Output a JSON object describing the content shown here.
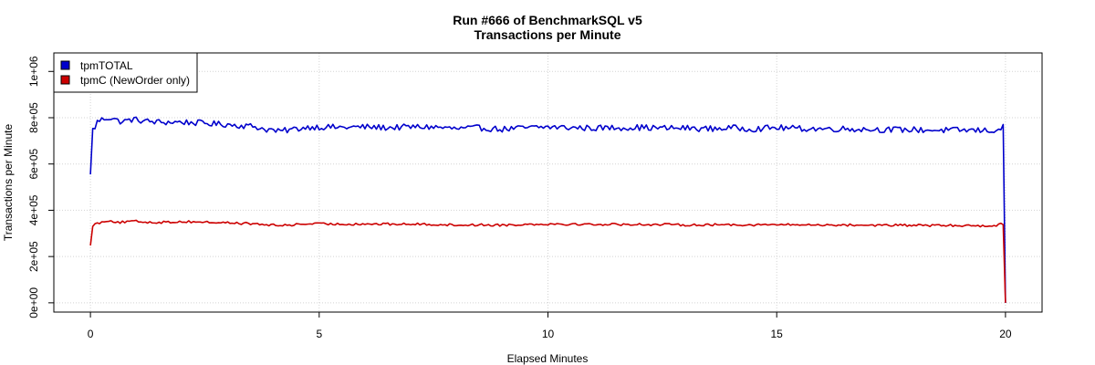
{
  "chart_data": {
    "type": "line",
    "title": "Run #666 of BenchmarkSQL v5",
    "subtitle": "Transactions per Minute",
    "xlabel": "Elapsed Minutes",
    "ylabel": "Transactions per Minute",
    "xlim": [
      -0.8,
      20.8
    ],
    "ylim": [
      -40000,
      1080000
    ],
    "x_ticks": [
      0,
      5,
      10,
      15,
      20
    ],
    "x_tick_labels": [
      "0",
      "5",
      "10",
      "15",
      "20"
    ],
    "y_ticks": [
      0,
      200000,
      400000,
      600000,
      800000,
      1000000
    ],
    "y_tick_labels": [
      "0e+00",
      "2e+05",
      "4e+05",
      "6e+05",
      "8e+05",
      "1e+06"
    ],
    "grid": true,
    "legend_position": "top-left",
    "legend": [
      "tpmTOTAL",
      "tpmC (NewOrder only)"
    ],
    "x_step": 0.05,
    "series": [
      {
        "name": "tpmTOTAL",
        "color": "#0000cc",
        "points": [
          [
            0,
            555000
          ],
          [
            0.05,
            748000
          ],
          [
            0.1,
            760000
          ],
          [
            0.15,
            782000
          ],
          [
            0.2,
            788000
          ],
          [
            0.3,
            796000
          ],
          [
            0.4,
            800000
          ],
          [
            0.5,
            797000
          ],
          [
            0.6,
            786000
          ],
          [
            0.7,
            783000
          ],
          [
            0.8,
            787000
          ],
          [
            0.9,
            792000
          ],
          [
            1.0,
            791000
          ],
          [
            1.2,
            785000
          ],
          [
            1.4,
            782000
          ],
          [
            1.6,
            780000
          ],
          [
            1.8,
            781000
          ],
          [
            2.0,
            781000
          ],
          [
            2.2,
            779000
          ],
          [
            2.5,
            776000
          ],
          [
            2.8,
            772000
          ],
          [
            3.0,
            771000
          ],
          [
            3.3,
            766000
          ],
          [
            3.6,
            762000
          ],
          [
            3.8,
            750000
          ],
          [
            3.95,
            748000
          ],
          [
            4.1,
            740000
          ],
          [
            4.3,
            746000
          ],
          [
            4.5,
            752000
          ],
          [
            4.8,
            760000
          ],
          [
            5.0,
            760000
          ],
          [
            5.5,
            758000
          ],
          [
            6.0,
            760000
          ],
          [
            6.5,
            757000
          ],
          [
            7.0,
            760000
          ],
          [
            7.5,
            760000
          ],
          [
            8.0,
            752000
          ],
          [
            8.5,
            756000
          ],
          [
            9.0,
            750000
          ],
          [
            9.5,
            756000
          ],
          [
            10.0,
            760000
          ],
          [
            10.5,
            757000
          ],
          [
            11.0,
            755000
          ],
          [
            11.5,
            757000
          ],
          [
            12.0,
            758000
          ],
          [
            12.5,
            755000
          ],
          [
            13.0,
            755000
          ],
          [
            13.5,
            752000
          ],
          [
            14.0,
            756000
          ],
          [
            14.5,
            752000
          ],
          [
            15.0,
            757000
          ],
          [
            15.5,
            753000
          ],
          [
            16.0,
            752000
          ],
          [
            16.5,
            752000
          ],
          [
            17.0,
            750000
          ],
          [
            17.5,
            748000
          ],
          [
            18.0,
            748000
          ],
          [
            18.5,
            746000
          ],
          [
            19.0,
            746000
          ],
          [
            19.5,
            745000
          ],
          [
            19.8,
            745000
          ],
          [
            19.95,
            758000
          ],
          [
            20.0,
            0
          ]
        ]
      },
      {
        "name": "tpmC (NewOrder only)",
        "color": "#cc0000",
        "points": [
          [
            0,
            248000
          ],
          [
            0.05,
            335000
          ],
          [
            0.1,
            340000
          ],
          [
            0.2,
            346000
          ],
          [
            0.3,
            352000
          ],
          [
            0.4,
            357000
          ],
          [
            0.5,
            352000
          ],
          [
            0.6,
            347000
          ],
          [
            0.8,
            350000
          ],
          [
            1.0,
            352000
          ],
          [
            1.3,
            348000
          ],
          [
            1.6,
            348000
          ],
          [
            2.0,
            351000
          ],
          [
            2.3,
            350000
          ],
          [
            2.6,
            348000
          ],
          [
            3.0,
            346000
          ],
          [
            3.4,
            343000
          ],
          [
            3.8,
            338000
          ],
          [
            4.1,
            334000
          ],
          [
            4.4,
            337000
          ],
          [
            4.8,
            342000
          ],
          [
            5.0,
            341000
          ],
          [
            5.5,
            340000
          ],
          [
            6.0,
            341000
          ],
          [
            6.5,
            340000
          ],
          [
            7.0,
            340000
          ],
          [
            7.5,
            339000
          ],
          [
            8.0,
            336000
          ],
          [
            8.5,
            337000
          ],
          [
            9.0,
            336000
          ],
          [
            9.5,
            339000
          ],
          [
            10.0,
            341000
          ],
          [
            10.5,
            340000
          ],
          [
            11.0,
            339000
          ],
          [
            11.5,
            339000
          ],
          [
            12.0,
            339000
          ],
          [
            12.5,
            338000
          ],
          [
            13.0,
            337000
          ],
          [
            13.5,
            337000
          ],
          [
            14.0,
            338000
          ],
          [
            14.5,
            337000
          ],
          [
            15.0,
            338000
          ],
          [
            15.5,
            337000
          ],
          [
            16.0,
            337000
          ],
          [
            16.5,
            336000
          ],
          [
            17.0,
            336000
          ],
          [
            17.5,
            335000
          ],
          [
            18.0,
            335000
          ],
          [
            18.5,
            334000
          ],
          [
            19.0,
            334000
          ],
          [
            19.5,
            333000
          ],
          [
            19.8,
            334000
          ],
          [
            19.95,
            342000
          ],
          [
            20.0,
            0
          ]
        ]
      }
    ]
  }
}
